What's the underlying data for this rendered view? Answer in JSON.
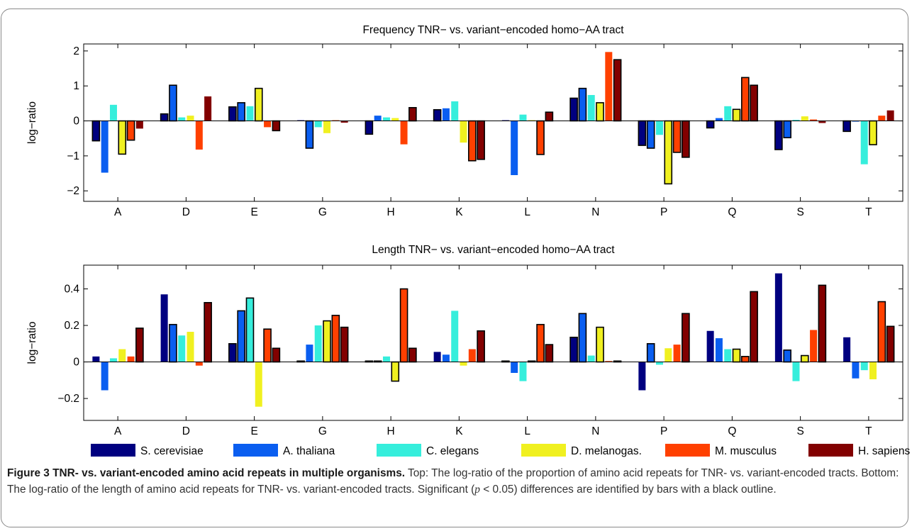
{
  "figure": {
    "legend": [
      {
        "name": "S. cerevisiae",
        "color": "#000080"
      },
      {
        "name": "A. thaliana",
        "color": "#0a5ef0"
      },
      {
        "name": "C. elegans",
        "color": "#36eedc"
      },
      {
        "name": "D. melanogas.",
        "color": "#f0f020"
      },
      {
        "name": "M. musculus",
        "color": "#ff4000"
      },
      {
        "name": "H. sapiens",
        "color": "#820000"
      }
    ],
    "caption": {
      "bold": "Figure 3 TNR- vs. variant-encoded amino acid repeats in multiple organisms.",
      "text1": " Top: The log-ratio of the proportion of amino acid repeats for TNR- vs. variant-encoded tracts. Bottom: The log-ratio of the length of amino acid repeats for TNR- vs. variant-encoded tracts. Significant (",
      "p": "p",
      "text2": " < 0.05) differences are identified by bars with a black outline."
    }
  },
  "chart_data": [
    {
      "type": "bar",
      "title": "Frequency TNR− vs. variant−encoded homo−AA tract",
      "xlabel": "",
      "ylabel": "log−ratio",
      "ylim": [
        -2.3,
        2.2
      ],
      "yticks": [
        -2,
        -1,
        0,
        1,
        2
      ],
      "ytick_labels": [
        "−2",
        "−1",
        "0",
        "1",
        "2"
      ],
      "categories": [
        "A",
        "D",
        "E",
        "G",
        "H",
        "K",
        "L",
        "N",
        "P",
        "Q",
        "S",
        "T"
      ],
      "series": [
        {
          "name": "S. cerevisiae",
          "values": [
            -0.57,
            0.2,
            0.4,
            0.02,
            -0.38,
            0.32,
            0.02,
            0.65,
            -0.7,
            -0.2,
            -0.82,
            -0.3
          ],
          "significant": [
            true,
            true,
            true,
            false,
            true,
            true,
            false,
            true,
            true,
            true,
            true,
            true
          ]
        },
        {
          "name": "A. thaliana",
          "values": [
            -1.48,
            1.02,
            0.52,
            -0.78,
            0.15,
            0.36,
            -1.55,
            0.93,
            -0.78,
            0.08,
            -0.48,
            0.0
          ],
          "significant": [
            false,
            true,
            true,
            true,
            false,
            false,
            false,
            true,
            true,
            false,
            true,
            false
          ]
        },
        {
          "name": "C. elegans",
          "values": [
            0.46,
            0.1,
            0.42,
            -0.18,
            0.1,
            0.56,
            0.18,
            0.74,
            -0.4,
            0.42,
            0.03,
            -1.24
          ],
          "significant": [
            false,
            false,
            false,
            false,
            false,
            false,
            false,
            false,
            false,
            false,
            false,
            false
          ]
        },
        {
          "name": "D. melanogas.",
          "values": [
            -0.95,
            0.15,
            0.93,
            -0.35,
            0.08,
            -0.62,
            0.02,
            0.52,
            -1.8,
            0.33,
            0.13,
            -0.68
          ],
          "significant": [
            true,
            false,
            true,
            false,
            false,
            false,
            false,
            true,
            true,
            true,
            false,
            true
          ]
        },
        {
          "name": "M. musculus",
          "values": [
            -0.55,
            -0.82,
            -0.18,
            0.02,
            -0.67,
            -1.14,
            -0.96,
            1.97,
            -0.9,
            1.24,
            0.04,
            0.15
          ],
          "significant": [
            true,
            false,
            false,
            false,
            false,
            true,
            true,
            false,
            true,
            true,
            false,
            false
          ]
        },
        {
          "name": "H. sapiens",
          "values": [
            -0.22,
            0.7,
            -0.28,
            -0.05,
            0.38,
            -1.1,
            0.25,
            1.75,
            -1.04,
            1.02,
            -0.06,
            0.3
          ],
          "significant": [
            false,
            false,
            true,
            false,
            true,
            true,
            true,
            true,
            true,
            true,
            false,
            false
          ]
        }
      ]
    },
    {
      "type": "bar",
      "title": "Length TNR− vs. variant−encoded homo−AA tract",
      "xlabel": "",
      "ylabel": "log−ratio",
      "ylim": [
        -0.32,
        0.53
      ],
      "yticks": [
        -0.2,
        0,
        0.2,
        0.4
      ],
      "ytick_labels": [
        "−0.2",
        "0",
        "0.2",
        "0.4"
      ],
      "categories": [
        "A",
        "D",
        "E",
        "G",
        "H",
        "K",
        "L",
        "N",
        "P",
        "Q",
        "S",
        "T"
      ],
      "series": [
        {
          "name": "S. cerevisiae",
          "values": [
            0.03,
            0.37,
            0.1,
            0.005,
            0.005,
            0.055,
            0.005,
            0.135,
            -0.155,
            0.17,
            0.485,
            0.135
          ],
          "significant": [
            false,
            false,
            true,
            true,
            true,
            false,
            true,
            true,
            false,
            false,
            false,
            false
          ]
        },
        {
          "name": "A. thaliana",
          "values": [
            -0.155,
            0.205,
            0.28,
            0.095,
            0.005,
            0.04,
            -0.06,
            0.265,
            0.1,
            0.13,
            0.065,
            -0.09
          ],
          "significant": [
            false,
            true,
            true,
            false,
            true,
            false,
            false,
            true,
            true,
            false,
            true,
            false
          ]
        },
        {
          "name": "C. elegans",
          "values": [
            0.02,
            0.145,
            0.35,
            0.2,
            0.03,
            0.28,
            -0.105,
            0.035,
            -0.015,
            0.07,
            -0.105,
            -0.045
          ],
          "significant": [
            false,
            false,
            true,
            false,
            false,
            false,
            false,
            false,
            false,
            false,
            false,
            false
          ]
        },
        {
          "name": "D. melanogas.",
          "values": [
            0.07,
            0.165,
            -0.245,
            0.225,
            -0.105,
            -0.02,
            0.005,
            0.19,
            0.075,
            0.07,
            0.035,
            -0.095
          ],
          "significant": [
            false,
            false,
            false,
            true,
            true,
            false,
            true,
            true,
            false,
            true,
            true,
            false
          ]
        },
        {
          "name": "M. musculus",
          "values": [
            0.03,
            -0.02,
            0.18,
            0.255,
            0.4,
            0.07,
            0.205,
            0.005,
            0.095,
            0.03,
            0.175,
            0.33
          ],
          "significant": [
            false,
            false,
            true,
            true,
            true,
            false,
            true,
            false,
            false,
            true,
            false,
            true
          ]
        },
        {
          "name": "H. sapiens",
          "values": [
            0.185,
            0.325,
            0.075,
            0.19,
            0.075,
            0.17,
            0.095,
            0.005,
            0.265,
            0.385,
            0.42,
            0.195
          ],
          "significant": [
            true,
            true,
            true,
            true,
            true,
            true,
            true,
            true,
            true,
            true,
            true,
            true
          ]
        }
      ]
    }
  ]
}
